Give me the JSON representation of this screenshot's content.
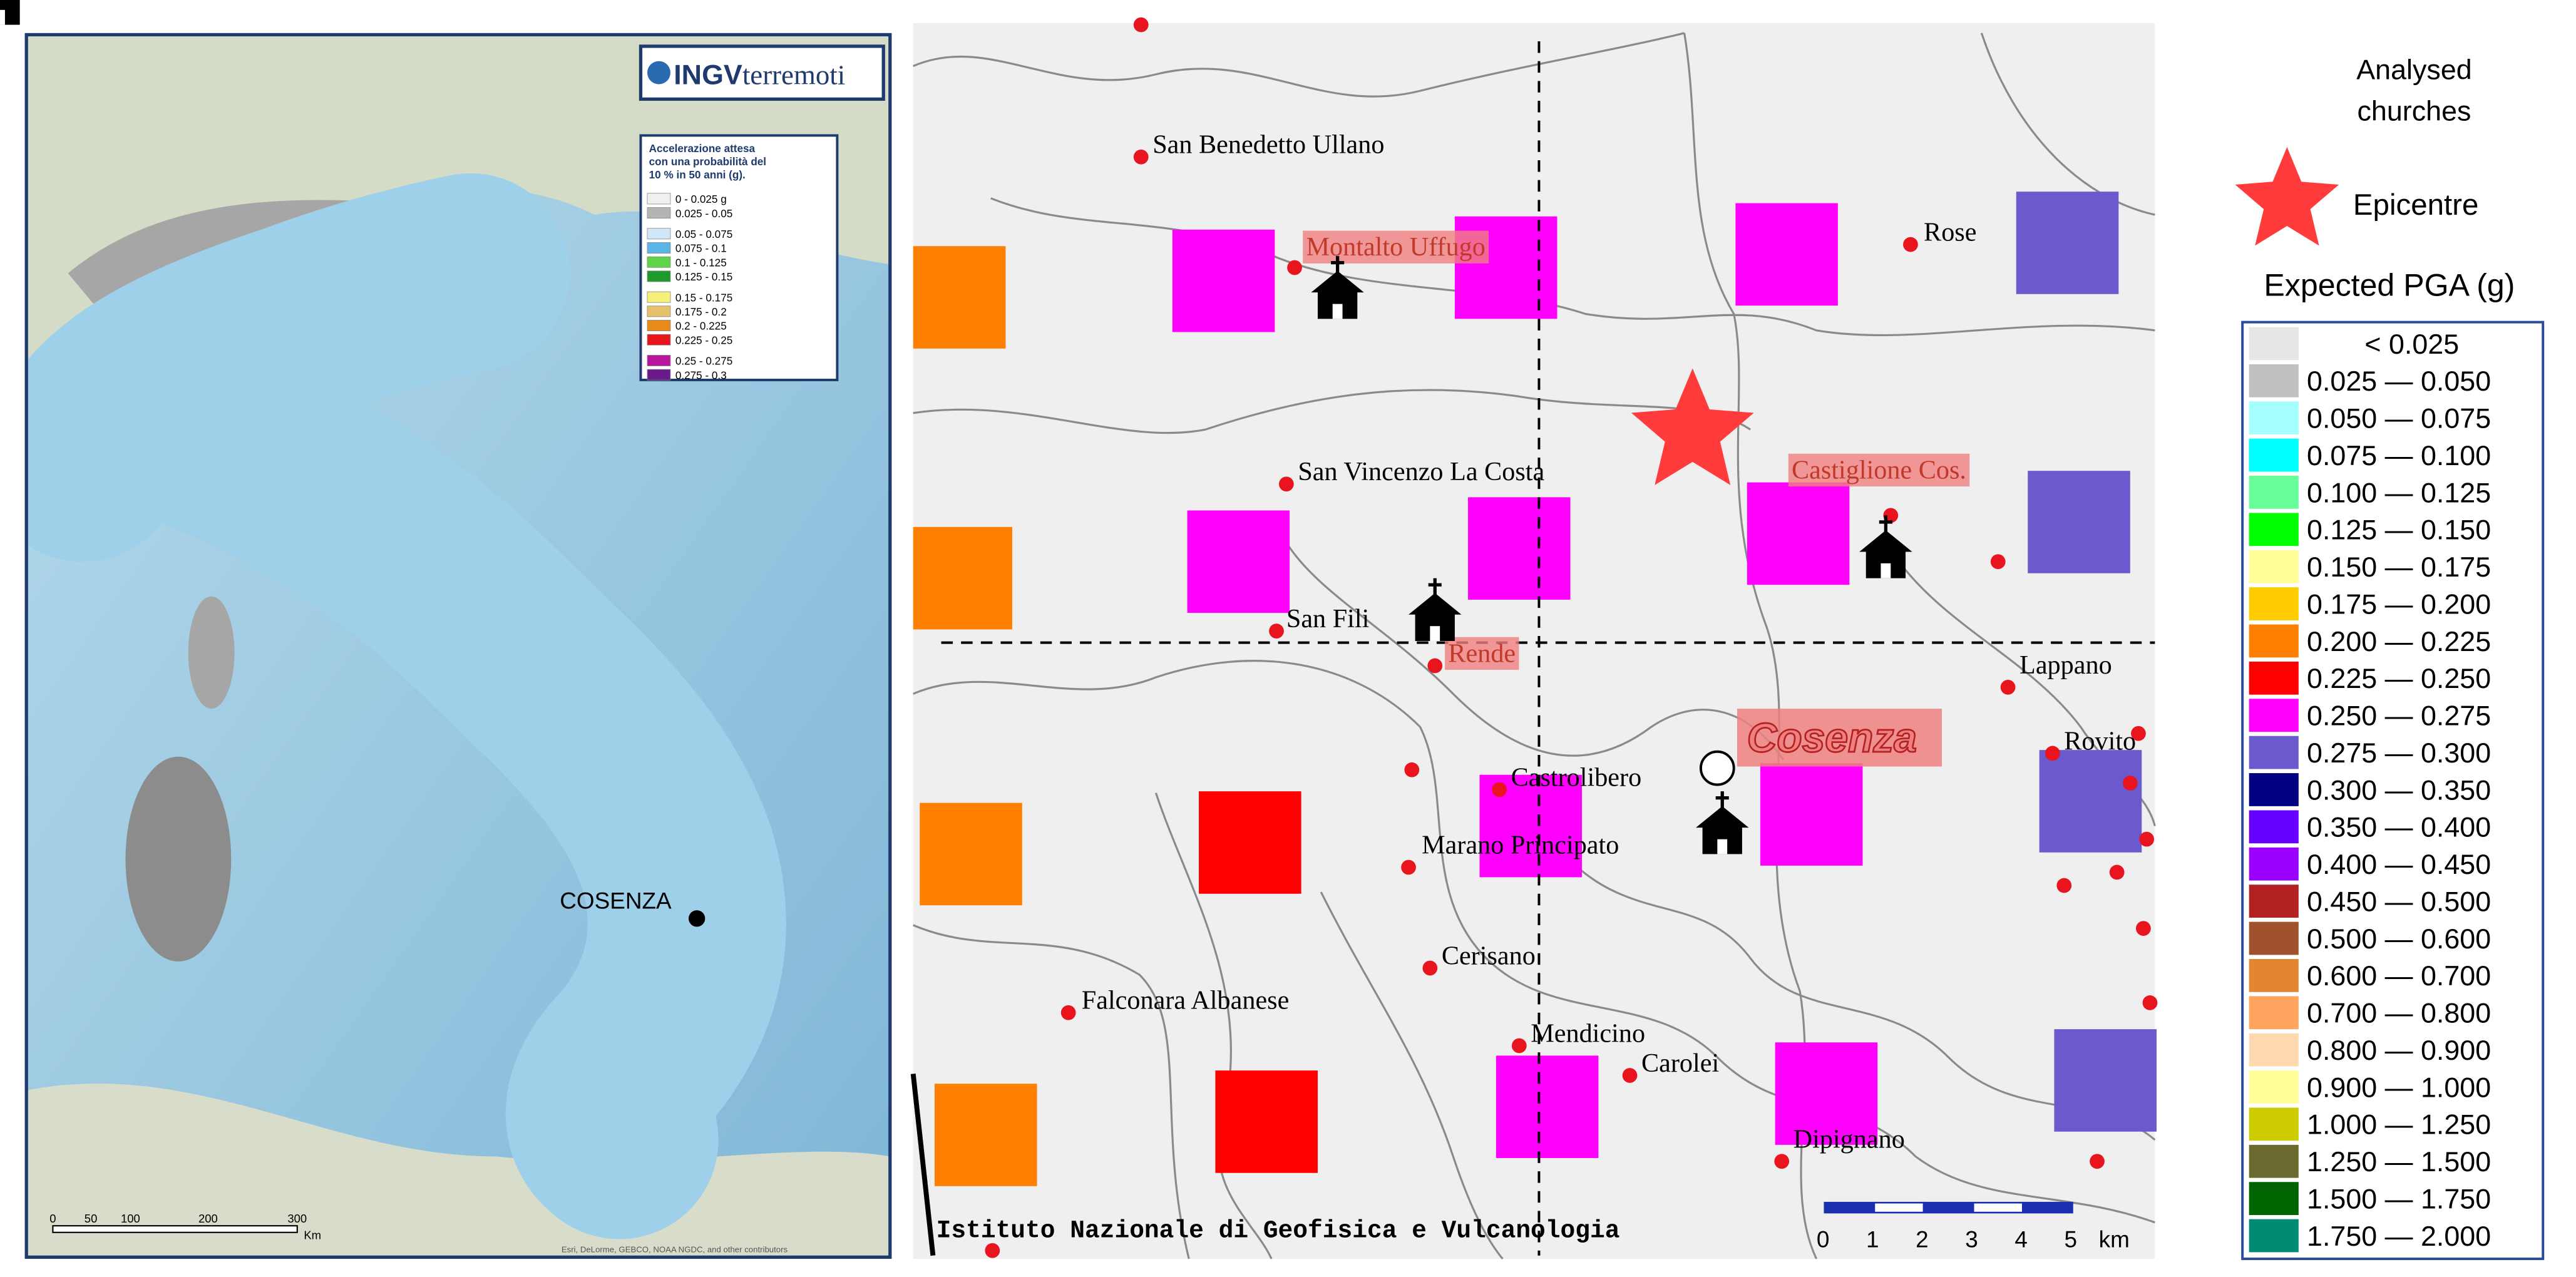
{
  "left_map": {
    "logo_bold": "INGV",
    "logo_text": "terremoti",
    "legend_title": [
      "Accelerazione attesa",
      "con una probabilità del",
      "10 % in 50 anni (g)."
    ],
    "legend": [
      {
        "label": "0 - 0.025 g",
        "color": "#f0f0f0"
      },
      {
        "label": "0.025 - 0.05",
        "color": "#b4b4b4"
      },
      {
        "label": "0.05 - 0.075",
        "color": "#cfe7f7"
      },
      {
        "label": "0.075 - 0.1",
        "color": "#5ab4e6"
      },
      {
        "label": "0.1 - 0.125",
        "color": "#5fd44a"
      },
      {
        "label": "0.125 - 0.15",
        "color": "#1e9a2a"
      },
      {
        "label": "0.15 - 0.175",
        "color": "#f5f07a"
      },
      {
        "label": "0.175 - 0.2",
        "color": "#e6c06a"
      },
      {
        "label": "0.2 - 0.225",
        "color": "#e88a1a"
      },
      {
        "label": "0.225 - 0.25",
        "color": "#e8141e"
      },
      {
        "label": "0.25 - 0.275",
        "color": "#b8169a"
      },
      {
        "label": "0.275 - 0.3",
        "color": "#6a1a8a"
      }
    ],
    "city": "COSENZA",
    "scale_labels": [
      "0",
      "50",
      "100",
      "200",
      "300"
    ],
    "scale_unit": "Km",
    "credits": "Esri, DeLorme, GEBCO, NOAA NGDC, and other contributors"
  },
  "right_map": {
    "towns": [
      {
        "name": "San Benedetto Ullano",
        "highlight": false
      },
      {
        "name": "Montalto Uffugo",
        "highlight": true
      },
      {
        "name": "Rose",
        "highlight": false
      },
      {
        "name": "San Vincenzo La Costa",
        "highlight": false
      },
      {
        "name": "Castiglione Cos.",
        "highlight": true
      },
      {
        "name": "San Fili",
        "highlight": false
      },
      {
        "name": "Rende",
        "highlight": true
      },
      {
        "name": "Lappano",
        "highlight": false
      },
      {
        "name": "Rovito",
        "highlight": false
      },
      {
        "name": "Castrolibero",
        "highlight": false
      },
      {
        "name": "Marano Principato",
        "highlight": false
      },
      {
        "name": "Cerisano",
        "highlight": false
      },
      {
        "name": "Falconara Albanese",
        "highlight": false
      },
      {
        "name": "Mendicino",
        "highlight": false
      },
      {
        "name": "Carolei",
        "highlight": false
      },
      {
        "name": "Dipignano",
        "highlight": false
      }
    ],
    "city": "Cosenza",
    "footer": "Istituto Nazionale di Geofisica e Vulcanologia",
    "scale_labels": [
      "0",
      "1",
      "2",
      "3",
      "4",
      "5"
    ],
    "scale_unit": "km"
  },
  "legend": {
    "churches": [
      "Analysed",
      "churches"
    ],
    "epicentre": "Epicentre",
    "title": "Expected PGA (g)",
    "classes": [
      {
        "label": "< 0.025",
        "color": "#e6e6e6"
      },
      {
        "label": "0.025 — 0.050",
        "color": "#c0c0c0"
      },
      {
        "label": "0.050 — 0.075",
        "color": "#a6ffff"
      },
      {
        "label": "0.075 — 0.100",
        "color": "#00ffff"
      },
      {
        "label": "0.100 — 0.125",
        "color": "#66ff99"
      },
      {
        "label": "0.125 — 0.150",
        "color": "#00ff00"
      },
      {
        "label": "0.150 — 0.175",
        "color": "#ffff99"
      },
      {
        "label": "0.175 — 0.200",
        "color": "#ffcc00"
      },
      {
        "label": "0.200 — 0.225",
        "color": "#ff8000"
      },
      {
        "label": "0.225 — 0.250",
        "color": "#ff0000"
      },
      {
        "label": "0.250 — 0.275",
        "color": "#ff00ff"
      },
      {
        "label": "0.275 — 0.300",
        "color": "#6a5acd"
      },
      {
        "label": "0.300 — 0.350",
        "color": "#000080"
      },
      {
        "label": "0.350 — 0.400",
        "color": "#6600ff"
      },
      {
        "label": "0.400 — 0.450",
        "color": "#9900ff"
      },
      {
        "label": "0.450 — 0.500",
        "color": "#b22222"
      },
      {
        "label": "0.500 — 0.600",
        "color": "#a0522d"
      },
      {
        "label": "0.600 — 0.700",
        "color": "#e38631"
      },
      {
        "label": "0.700 — 0.800",
        "color": "#ffa560"
      },
      {
        "label": "0.800 — 0.900",
        "color": "#ffdab0"
      },
      {
        "label": "0.900 — 1.000",
        "color": "#ffff99"
      },
      {
        "label": "1.000 — 1.250",
        "color": "#cccc00"
      },
      {
        "label": "1.250 — 1.500",
        "color": "#6b6b2f"
      },
      {
        "label": "1.500 — 1.750",
        "color": "#006400"
      },
      {
        "label": "1.750 — 2.000",
        "color": "#008b74"
      }
    ]
  }
}
